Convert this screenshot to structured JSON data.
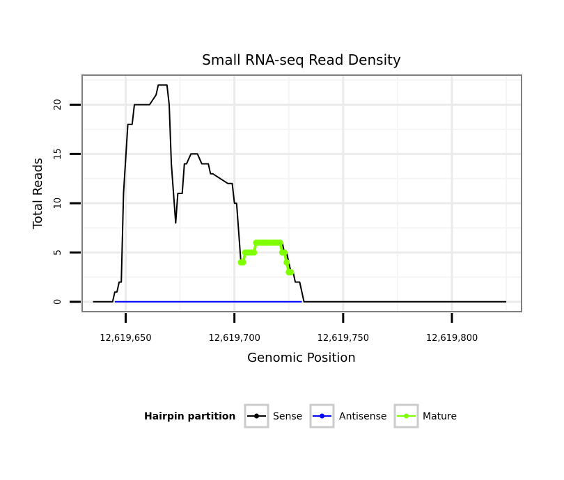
{
  "chart_data": {
    "type": "line",
    "title": "Small RNA-seq Read Density",
    "xlabel": "Genomic Position",
    "ylabel": "Total Reads",
    "xlim": [
      12619630,
      12619832
    ],
    "ylim": [
      -1,
      23
    ],
    "x_ticks": [
      12619650,
      12619700,
      12619750,
      12619800
    ],
    "x_tick_labels": [
      "12,619,650",
      "12,619,700",
      "12,619,750",
      "12,619,800"
    ],
    "y_ticks": [
      0,
      5,
      10,
      15,
      20
    ],
    "y_tick_labels": [
      "0",
      "5",
      "10",
      "15",
      "20"
    ],
    "grid": true,
    "legend": {
      "title": "Hairpin partition",
      "position": "bottom",
      "entries": [
        {
          "name": "Sense",
          "color": "#000000"
        },
        {
          "name": "Antisense",
          "color": "#0000ff"
        },
        {
          "name": "Mature",
          "color": "#7fff00"
        }
      ]
    },
    "series": [
      {
        "name": "Sense",
        "color": "#000000",
        "x": [
          12619635,
          12619644,
          12619645,
          12619646,
          12619647,
          12619648,
          12619649,
          12619651,
          12619652,
          12619653,
          12619654,
          12619658,
          12619659,
          12619661,
          12619664,
          12619665,
          12619667,
          12619668,
          12619669,
          12619670,
          12619671,
          12619672,
          12619673,
          12619674,
          12619675,
          12619676,
          12619677,
          12619678,
          12619680,
          12619681,
          12619682,
          12619683,
          12619685,
          12619686,
          12619688,
          12619689,
          12619690,
          12619697,
          12619698,
          12619699,
          12619700,
          12619701,
          12619702,
          12619703,
          12619704,
          12619705,
          12619706,
          12619707,
          12619708,
          12619709,
          12619710,
          12619711,
          12619712,
          12619713,
          12619714,
          12619716,
          12619717,
          12619719,
          12619720,
          12619721,
          12619722,
          12619723,
          12619724,
          12619725,
          12619726,
          12619727,
          12619728,
          12619729,
          12619730,
          12619731,
          12619732,
          12619825
        ],
        "y": [
          0,
          0,
          1,
          1,
          2,
          2,
          11,
          18,
          18,
          18,
          20,
          20,
          20,
          20,
          21,
          22,
          22,
          22,
          22,
          20,
          14,
          11,
          8,
          11,
          11,
          11,
          14,
          14,
          15,
          15,
          15,
          15,
          14,
          14,
          14,
          13,
          13,
          12,
          12,
          12,
          10,
          10,
          7,
          4,
          4,
          5,
          5,
          5,
          5,
          5,
          6,
          6,
          6,
          6,
          6,
          6,
          6,
          6,
          6,
          6,
          6,
          5,
          5,
          4,
          3,
          3,
          2,
          2,
          2,
          1,
          0,
          0
        ]
      },
      {
        "name": "Antisense",
        "color": "#0000ff",
        "x": [
          12619645,
          12619731
        ],
        "y": [
          0,
          0
        ]
      },
      {
        "name": "Mature",
        "color": "#7fff00",
        "x": [
          12619703,
          12619704,
          12619705,
          12619706,
          12619707,
          12619708,
          12619709,
          12619710,
          12619711,
          12619712,
          12619713,
          12619714,
          12619715,
          12619716,
          12619717,
          12619718,
          12619719,
          12619720,
          12619721,
          12619722,
          12619723,
          12619724,
          12619725,
          12619726
        ],
        "y": [
          4,
          4,
          5,
          5,
          5,
          5,
          5,
          6,
          6,
          6,
          6,
          6,
          6,
          6,
          6,
          6,
          6,
          6,
          6,
          5,
          5,
          4,
          3,
          3
        ]
      }
    ]
  }
}
